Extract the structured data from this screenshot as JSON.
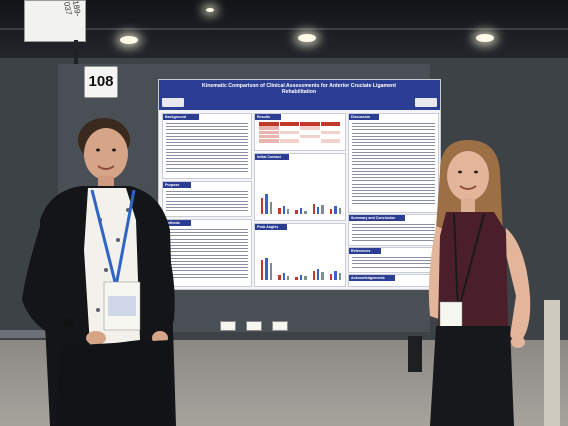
{
  "booth": {
    "number": "108",
    "sign_code": "189-037"
  },
  "poster": {
    "title": "Kinematic Comparison of Clinical Assessments for Anterior Cruciate Ligament Rehabilitation",
    "sections": {
      "background": "Background",
      "purpose": "Purpose",
      "methods": "Methods",
      "results": "Results",
      "initial_contact": "Initial Contact",
      "peak_angles": "Peak Angles",
      "discussion": "Discussion",
      "summary": "Summary and Conclusion",
      "references": "References",
      "acknowledgements": "Acknowledgements"
    },
    "colors": {
      "header_blue": "#2c3e94",
      "bar_red": "#c0392b",
      "bar_blue": "#3b5fc7",
      "bar_gray": "#7f8c8d"
    }
  },
  "people": [
    {
      "name": "presenter-left",
      "shirt": "black blazer, white floral top",
      "lanyard": "blue"
    },
    {
      "name": "presenter-right",
      "shirt": "maroon sleeveless top",
      "lanyard": "black"
    }
  ]
}
